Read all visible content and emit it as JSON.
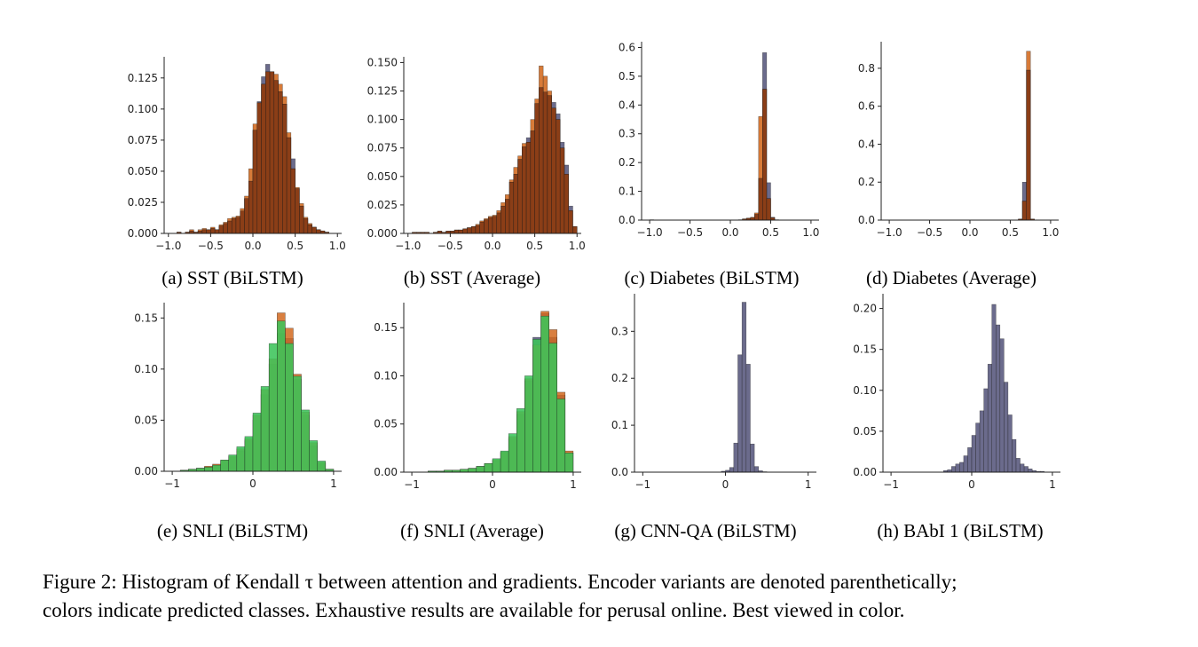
{
  "figure_caption": {
    "line1": "Figure 2: Histogram of Kendall τ between attention and gradients. Encoder variants are denoted parenthetically;",
    "line2": "colors indicate predicted classes. Exhaustive results are available for perusal online. Best viewed in color."
  },
  "colors": {
    "class_0": "#5b5b7f",
    "class_1": "#d2691e",
    "class_2": "#3cc45a",
    "overlap": "#8b3e17"
  },
  "chart_data": [
    {
      "type": "bar",
      "caption": "(a) SST (BiLSTM)",
      "bin_width": 0.05,
      "xlim": [
        -1.05,
        1.05
      ],
      "ylim": [
        0,
        0.142
      ],
      "xticks": [
        -1.0,
        -0.5,
        0.0,
        0.5,
        1.0
      ],
      "xtick_labels": [
        "−1.0",
        "−0.5",
        "0.0",
        "0.5",
        "1.0"
      ],
      "yticks": [
        0.0,
        0.025,
        0.05,
        0.075,
        0.1,
        0.125
      ],
      "ytick_labels": [
        "0.000",
        "0.025",
        "0.050",
        "0.075",
        "0.100",
        "0.125"
      ],
      "bin_starts": [
        -1.0,
        -0.95,
        -0.9,
        -0.85,
        -0.8,
        -0.75,
        -0.7,
        -0.65,
        -0.6,
        -0.55,
        -0.5,
        -0.45,
        -0.4,
        -0.35,
        -0.3,
        -0.25,
        -0.2,
        -0.15,
        -0.1,
        -0.05,
        0.0,
        0.05,
        0.1,
        0.15,
        0.2,
        0.25,
        0.3,
        0.35,
        0.4,
        0.45,
        0.5,
        0.55,
        0.6,
        0.65,
        0.7,
        0.75,
        0.8,
        0.85,
        0.9,
        0.95
      ],
      "series": [
        {
          "values": [
            0,
            0,
            0.001,
            0,
            0.001,
            0.002,
            0.001,
            0.002,
            0.003,
            0.003,
            0.004,
            0.003,
            0.006,
            0.008,
            0.01,
            0.012,
            0.013,
            0.018,
            0.028,
            0.042,
            0.083,
            0.106,
            0.126,
            0.136,
            0.13,
            0.123,
            0.114,
            0.104,
            0.077,
            0.06,
            0.036,
            0.022,
            0.012,
            0.007,
            0.005,
            0.003,
            0.002,
            0.001,
            0,
            0
          ]
        },
        {
          "values": [
            0,
            0,
            0.001,
            0,
            0.001,
            0.003,
            0.001,
            0.003,
            0.004,
            0.003,
            0.005,
            0.003,
            0.007,
            0.009,
            0.012,
            0.013,
            0.014,
            0.02,
            0.03,
            0.052,
            0.088,
            0.105,
            0.12,
            0.13,
            0.13,
            0.128,
            0.12,
            0.11,
            0.081,
            0.052,
            0.037,
            0.024,
            0.013,
            0.008,
            0.005,
            0.003,
            0.002,
            0.001,
            0,
            0
          ]
        }
      ]
    },
    {
      "type": "bar",
      "caption": "(b) SST (Average)",
      "bin_width": 0.05,
      "xlim": [
        -1.05,
        1.05
      ],
      "ylim": [
        0,
        0.155
      ],
      "xticks": [
        -1.0,
        -0.5,
        0.0,
        0.5,
        1.0
      ],
      "xtick_labels": [
        "−1.0",
        "−0.5",
        "0.0",
        "0.5",
        "1.0"
      ],
      "yticks": [
        0.0,
        0.025,
        0.05,
        0.075,
        0.1,
        0.125,
        0.15
      ],
      "ytick_labels": [
        "0.000",
        "0.025",
        "0.050",
        "0.075",
        "0.100",
        "0.125",
        "0.150"
      ],
      "bin_starts": [
        -1.0,
        -0.95,
        -0.9,
        -0.85,
        -0.8,
        -0.75,
        -0.7,
        -0.65,
        -0.6,
        -0.55,
        -0.5,
        -0.45,
        -0.4,
        -0.35,
        -0.3,
        -0.25,
        -0.2,
        -0.15,
        -0.1,
        -0.05,
        0.0,
        0.05,
        0.1,
        0.15,
        0.2,
        0.25,
        0.3,
        0.35,
        0.4,
        0.45,
        0.5,
        0.55,
        0.6,
        0.65,
        0.7,
        0.75,
        0.8,
        0.85,
        0.9,
        0.95
      ],
      "series": [
        {
          "values": [
            0,
            0.001,
            0.001,
            0.001,
            0.001,
            0,
            0.001,
            0.002,
            0.001,
            0.002,
            0.002,
            0.003,
            0.003,
            0.004,
            0.005,
            0.006,
            0.007,
            0.01,
            0.012,
            0.014,
            0.015,
            0.018,
            0.024,
            0.03,
            0.045,
            0.052,
            0.065,
            0.076,
            0.084,
            0.09,
            0.114,
            0.128,
            0.124,
            0.121,
            0.115,
            0.105,
            0.08,
            0.06,
            0.024,
            0.006
          ]
        },
        {
          "values": [
            0,
            0.001,
            0.001,
            0.001,
            0.001,
            0,
            0.001,
            0.002,
            0.001,
            0.002,
            0.002,
            0.003,
            0.003,
            0.004,
            0.005,
            0.006,
            0.008,
            0.011,
            0.013,
            0.015,
            0.016,
            0.02,
            0.027,
            0.034,
            0.047,
            0.058,
            0.068,
            0.079,
            0.08,
            0.1,
            0.118,
            0.147,
            0.138,
            0.125,
            0.11,
            0.1,
            0.075,
            0.052,
            0.02,
            0.006
          ]
        }
      ]
    },
    {
      "type": "bar",
      "caption": "(c) Diabetes (BiLSTM)",
      "bin_width": 0.05,
      "xlim": [
        -1.1,
        1.1
      ],
      "ylim": [
        0,
        0.62
      ],
      "xticks": [
        -1.0,
        -0.5,
        0.0,
        0.5,
        1.0
      ],
      "xtick_labels": [
        "−1.0",
        "−0.5",
        "0.0",
        "0.5",
        "1.0"
      ],
      "yticks": [
        0.0,
        0.1,
        0.2,
        0.3,
        0.4,
        0.5,
        0.6
      ],
      "ytick_labels": [
        "0.0",
        "0.1",
        "0.2",
        "0.3",
        "0.4",
        "0.5",
        "0.6"
      ],
      "bin_starts": [
        -1.0,
        0.1,
        0.15,
        0.2,
        0.25,
        0.3,
        0.35,
        0.4,
        0.45,
        0.5,
        0.55
      ],
      "series": [
        {
          "values": [
            0.001,
            0.001,
            0.004,
            0.006,
            0.008,
            0.02,
            0.145,
            0.582,
            0.13,
            0.01,
            0.001
          ]
        },
        {
          "values": [
            0.001,
            0.001,
            0.004,
            0.007,
            0.01,
            0.025,
            0.36,
            0.455,
            0.075,
            0.008,
            0.001
          ]
        }
      ]
    },
    {
      "type": "bar",
      "caption": "(d) Diabetes (Average)",
      "bin_width": 0.05,
      "xlim": [
        -1.1,
        1.1
      ],
      "ylim": [
        0,
        0.94
      ],
      "xticks": [
        -1.0,
        -0.5,
        0.0,
        0.5,
        1.0
      ],
      "xtick_labels": [
        "−1.0",
        "−0.5",
        "0.0",
        "0.5",
        "1.0"
      ],
      "yticks": [
        0.0,
        0.2,
        0.4,
        0.6,
        0.8
      ],
      "ytick_labels": [
        "0.0",
        "0.2",
        "0.4",
        "0.6",
        "0.8"
      ],
      "bin_starts": [
        0.6,
        0.65,
        0.7,
        0.75
      ],
      "series": [
        {
          "values": [
            0.005,
            0.2,
            0.79,
            0.005
          ]
        },
        {
          "values": [
            0.005,
            0.1,
            0.89,
            0.005
          ]
        }
      ]
    },
    {
      "type": "bar",
      "caption": "(e) SNLI (BiLSTM)",
      "bin_width": 0.1,
      "xlim": [
        -1.1,
        1.1
      ],
      "ylim": [
        0,
        0.165
      ],
      "xticks": [
        -1,
        0,
        1
      ],
      "xtick_labels": [
        "−1",
        "0",
        "1"
      ],
      "yticks": [
        0.0,
        0.05,
        0.1,
        0.15
      ],
      "ytick_labels": [
        "0.00",
        "0.05",
        "0.10",
        "0.15"
      ],
      "bin_starts": [
        -1.0,
        -0.9,
        -0.8,
        -0.7,
        -0.6,
        -0.5,
        -0.4,
        -0.3,
        -0.2,
        -0.1,
        0.0,
        0.1,
        0.2,
        0.3,
        0.4,
        0.5,
        0.6,
        0.7,
        0.8,
        0.9
      ],
      "series": [
        {
          "values": [
            0,
            0.001,
            0.002,
            0.003,
            0.004,
            0.006,
            0.01,
            0.014,
            0.02,
            0.03,
            0.05,
            0.075,
            0.105,
            0.135,
            0.13,
            0.09,
            0.055,
            0.025,
            0.008,
            0.002
          ]
        },
        {
          "values": [
            0,
            0.001,
            0.002,
            0.003,
            0.005,
            0.007,
            0.011,
            0.015,
            0.022,
            0.032,
            0.055,
            0.08,
            0.11,
            0.155,
            0.14,
            0.095,
            0.058,
            0.028,
            0.009,
            0.002
          ]
        },
        {
          "values": [
            0,
            0.001,
            0.002,
            0.003,
            0.004,
            0.006,
            0.011,
            0.016,
            0.024,
            0.034,
            0.057,
            0.083,
            0.125,
            0.147,
            0.125,
            0.093,
            0.06,
            0.03,
            0.01,
            0.002
          ]
        }
      ]
    },
    {
      "type": "bar",
      "caption": "(f) SNLI (Average)",
      "bin_width": 0.1,
      "xlim": [
        -1.1,
        1.1
      ],
      "ylim": [
        0,
        0.176
      ],
      "xticks": [
        -1,
        0,
        1
      ],
      "xtick_labels": [
        "−1",
        "0",
        "1"
      ],
      "yticks": [
        0.0,
        0.05,
        0.1,
        0.15
      ],
      "ytick_labels": [
        "0.00",
        "0.05",
        "0.10",
        "0.15"
      ],
      "bin_starts": [
        -1.0,
        -0.9,
        -0.8,
        -0.7,
        -0.6,
        -0.5,
        -0.4,
        -0.3,
        -0.2,
        -0.1,
        0.0,
        0.1,
        0.2,
        0.3,
        0.4,
        0.5,
        0.6,
        0.7,
        0.8,
        0.9
      ],
      "series": [
        {
          "values": [
            0,
            0,
            0.001,
            0.001,
            0.002,
            0.002,
            0.003,
            0.004,
            0.006,
            0.008,
            0.012,
            0.02,
            0.035,
            0.06,
            0.095,
            0.14,
            0.165,
            0.14,
            0.08,
            0.02
          ]
        },
        {
          "values": [
            0,
            0,
            0.001,
            0.001,
            0.002,
            0.002,
            0.003,
            0.004,
            0.006,
            0.009,
            0.013,
            0.021,
            0.037,
            0.063,
            0.097,
            0.132,
            0.167,
            0.148,
            0.083,
            0.022
          ]
        },
        {
          "values": [
            0,
            0,
            0.001,
            0.001,
            0.002,
            0.002,
            0.003,
            0.004,
            0.006,
            0.009,
            0.014,
            0.022,
            0.04,
            0.066,
            0.1,
            0.138,
            0.162,
            0.134,
            0.076,
            0.02
          ]
        }
      ]
    },
    {
      "type": "bar",
      "caption": "(g) CNN-QA (BiLSTM)",
      "bin_width": 0.05,
      "xlim": [
        -1.1,
        1.1
      ],
      "ylim": [
        0,
        0.38
      ],
      "xticks": [
        -1,
        0,
        1
      ],
      "xtick_labels": [
        "−1",
        "0",
        "1"
      ],
      "yticks": [
        0.0,
        0.1,
        0.2,
        0.3
      ],
      "ytick_labels": [
        "0.0",
        "0.1",
        "0.2",
        "0.3"
      ],
      "bin_starts": [
        -0.05,
        0.0,
        0.05,
        0.1,
        0.15,
        0.2,
        0.25,
        0.3,
        0.35,
        0.4,
        0.45
      ],
      "series": [
        {
          "values": [
            0.002,
            0.004,
            0.01,
            0.062,
            0.25,
            0.362,
            0.23,
            0.06,
            0.012,
            0.003,
            0.001
          ]
        }
      ]
    },
    {
      "type": "bar",
      "caption": "(h) BAbI 1 (BiLSTM)",
      "bin_width": 0.05,
      "xlim": [
        -1.1,
        1.1
      ],
      "ylim": [
        0,
        0.218
      ],
      "xticks": [
        -1,
        0,
        1
      ],
      "xtick_labels": [
        "−1",
        "0",
        "1"
      ],
      "yticks": [
        0.0,
        0.05,
        0.1,
        0.15,
        0.2
      ],
      "ytick_labels": [
        "0.00",
        "0.05",
        "0.10",
        "0.15",
        "0.20"
      ],
      "bin_starts": [
        -0.35,
        -0.3,
        -0.25,
        -0.2,
        -0.15,
        -0.1,
        -0.05,
        0.0,
        0.05,
        0.1,
        0.15,
        0.2,
        0.25,
        0.3,
        0.35,
        0.4,
        0.45,
        0.5,
        0.55,
        0.6,
        0.65,
        0.7,
        0.75,
        0.8,
        0.85
      ],
      "series": [
        {
          "values": [
            0.002,
            0.003,
            0.007,
            0.01,
            0.012,
            0.02,
            0.03,
            0.045,
            0.06,
            0.075,
            0.102,
            0.132,
            0.205,
            0.18,
            0.163,
            0.11,
            0.07,
            0.04,
            0.017,
            0.01,
            0.007,
            0.004,
            0.002,
            0.001,
            0.001
          ]
        }
      ]
    }
  ]
}
